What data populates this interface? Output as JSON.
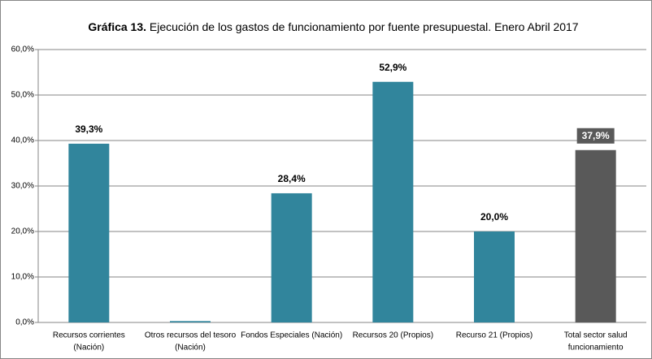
{
  "chart_data": {
    "type": "bar",
    "title_label": "Gráfica 13.",
    "title": "Ejecución de los gastos de funcionamiento por fuente presupuestal. Enero Abril 2017",
    "categories": [
      [
        "Recursos corrientes",
        "(Nación)"
      ],
      [
        "Otros recursos del tesoro",
        "(Nación)"
      ],
      [
        "Fondos Especiales (Nación)"
      ],
      [
        "Recursos 20 (Propios)"
      ],
      [
        "Recurso 21 (Propios)"
      ],
      [
        "Total sector salud",
        "funcionamiento"
      ]
    ],
    "values": [
      39.3,
      0.3,
      28.4,
      52.9,
      20.0,
      37.9
    ],
    "value_labels": [
      "39,3%",
      null,
      "28,4%",
      "52,9%",
      "20,0%",
      "37,9%"
    ],
    "colors": [
      "#31859c",
      "#31859c",
      "#31859c",
      "#31859c",
      "#31859c",
      "#595959"
    ],
    "ylim": [
      0,
      60
    ],
    "yticks": [
      {
        "value": 0,
        "label": "0,0%"
      },
      {
        "value": 10,
        "label": "10,0%"
      },
      {
        "value": 20,
        "label": "20,0%"
      },
      {
        "value": 30,
        "label": "30,0%"
      },
      {
        "value": 40,
        "label": "40,0%"
      },
      {
        "value": 50,
        "label": "50,0%"
      },
      {
        "value": 60,
        "label": "60,0%"
      }
    ],
    "grid": true
  }
}
